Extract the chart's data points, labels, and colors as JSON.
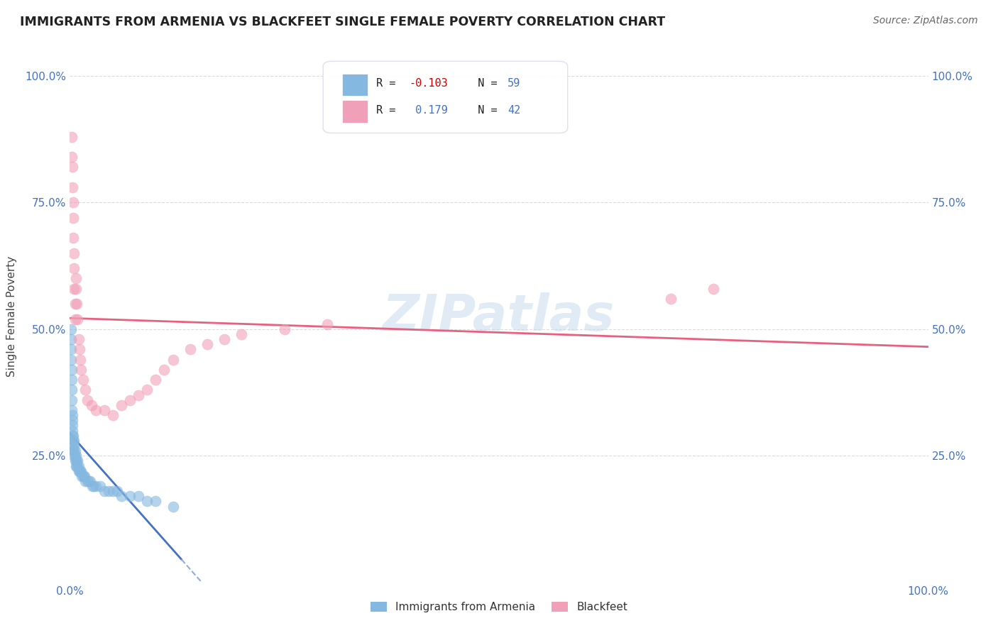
{
  "title": "IMMIGRANTS FROM ARMENIA VS BLACKFEET SINGLE FEMALE POVERTY CORRELATION CHART",
  "source": "Source: ZipAtlas.com",
  "ylabel": "Single Female Poverty",
  "color_blue": "#85b8e0",
  "color_pink": "#f0a0b8",
  "color_line_blue_solid": "#4472c4",
  "color_line_blue_dash": "#90aed4",
  "color_line_pink": "#e86080",
  "background_color": "#ffffff",
  "grid_color": "#cccccc",
  "tick_color": "#4472c4",
  "title_color": "#222222",
  "source_color": "#666666",
  "ylabel_color": "#444444",
  "watermark_color": "#c5d8ec",
  "legend_text_color": "#222222",
  "legend_r_color": "#cc0000",
  "legend_n_color": "#4472c4",
  "blue_x": [
    0.001,
    0.001,
    0.001,
    0.001,
    0.002,
    0.002,
    0.002,
    0.002,
    0.002,
    0.003,
    0.003,
    0.003,
    0.003,
    0.003,
    0.004,
    0.004,
    0.004,
    0.004,
    0.005,
    0.005,
    0.005,
    0.005,
    0.006,
    0.006,
    0.006,
    0.007,
    0.007,
    0.007,
    0.008,
    0.008,
    0.009,
    0.009,
    0.01,
    0.01,
    0.011,
    0.012,
    0.013,
    0.014,
    0.015,
    0.016,
    0.017,
    0.018,
    0.02,
    0.022,
    0.024,
    0.026,
    0.028,
    0.03,
    0.035,
    0.04,
    0.045,
    0.05,
    0.055,
    0.06,
    0.07,
    0.08,
    0.09,
    0.1,
    0.12
  ],
  "blue_y": [
    0.5,
    0.48,
    0.46,
    0.44,
    0.42,
    0.4,
    0.38,
    0.36,
    0.34,
    0.33,
    0.32,
    0.31,
    0.3,
    0.29,
    0.29,
    0.28,
    0.27,
    0.26,
    0.28,
    0.27,
    0.26,
    0.25,
    0.26,
    0.25,
    0.24,
    0.25,
    0.24,
    0.23,
    0.24,
    0.23,
    0.24,
    0.23,
    0.23,
    0.22,
    0.22,
    0.22,
    0.22,
    0.21,
    0.21,
    0.21,
    0.21,
    0.2,
    0.2,
    0.2,
    0.2,
    0.19,
    0.19,
    0.19,
    0.19,
    0.18,
    0.18,
    0.18,
    0.18,
    0.17,
    0.17,
    0.17,
    0.16,
    0.16,
    0.15
  ],
  "pink_x": [
    0.002,
    0.002,
    0.003,
    0.003,
    0.004,
    0.004,
    0.004,
    0.005,
    0.005,
    0.005,
    0.006,
    0.006,
    0.007,
    0.007,
    0.008,
    0.009,
    0.01,
    0.011,
    0.012,
    0.013,
    0.015,
    0.018,
    0.02,
    0.025,
    0.03,
    0.04,
    0.05,
    0.06,
    0.07,
    0.08,
    0.09,
    0.1,
    0.11,
    0.12,
    0.14,
    0.16,
    0.18,
    0.2,
    0.25,
    0.3,
    0.7,
    0.75
  ],
  "pink_y": [
    0.88,
    0.84,
    0.82,
    0.78,
    0.75,
    0.72,
    0.68,
    0.65,
    0.62,
    0.58,
    0.55,
    0.52,
    0.6,
    0.58,
    0.55,
    0.52,
    0.48,
    0.46,
    0.44,
    0.42,
    0.4,
    0.38,
    0.36,
    0.35,
    0.34,
    0.34,
    0.33,
    0.35,
    0.36,
    0.37,
    0.38,
    0.4,
    0.42,
    0.44,
    0.46,
    0.47,
    0.48,
    0.49,
    0.5,
    0.51,
    0.56,
    0.58
  ]
}
